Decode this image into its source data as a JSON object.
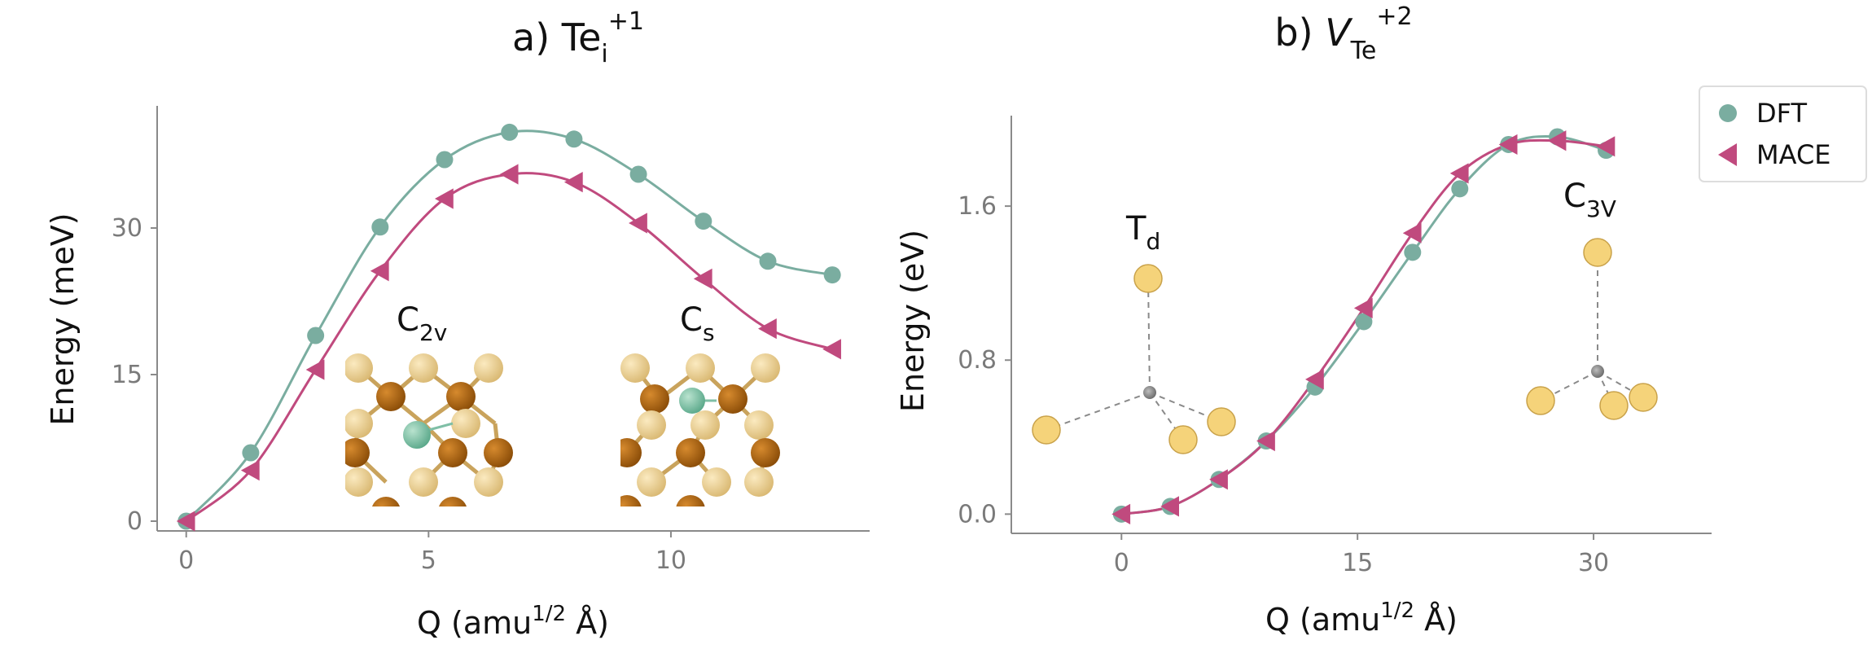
{
  "colors": {
    "dft": "#7aada0",
    "mace": "#c04a7e",
    "axis": "#8a8a8a",
    "te_atom": "#f2d17c",
    "cd_atom": "#b8690f"
  },
  "legend": {
    "entries": [
      {
        "label": "DFT",
        "marker": "circle"
      },
      {
        "label": "MACE",
        "marker": "triangle-left"
      }
    ]
  },
  "chart_data": [
    {
      "type": "line",
      "panel": "a",
      "title": {
        "main": "a) Te",
        "sub": "i",
        "sup": "+1"
      },
      "xlabel": {
        "main": "Q (amu",
        "sup": "1/2",
        "tail": " Å)"
      },
      "ylabel": "Energy (meV)",
      "xlim": [
        -0.6,
        14.1
      ],
      "ylim": [
        -1,
        42.5
      ],
      "xticks": [
        0,
        5,
        10
      ],
      "yticks": [
        0,
        15,
        30
      ],
      "series": [
        {
          "name": "DFT",
          "x": [
            0,
            1.33,
            2.67,
            4.0,
            5.33,
            6.67,
            8.0,
            9.33,
            10.67,
            12.0,
            13.33
          ],
          "y": [
            0,
            7.0,
            19.0,
            30.1,
            37.0,
            39.8,
            39.1,
            35.5,
            30.7,
            26.6,
            25.2
          ]
        },
        {
          "name": "MACE",
          "x": [
            0,
            1.33,
            2.67,
            4.0,
            5.33,
            6.67,
            8.0,
            9.33,
            10.67,
            12.0,
            13.33
          ],
          "y": [
            0,
            5.2,
            15.5,
            25.6,
            33.0,
            35.5,
            34.7,
            30.5,
            24.8,
            19.7,
            17.6
          ]
        }
      ],
      "annotations": [
        {
          "main": "C",
          "sub": "2v"
        },
        {
          "main": "C",
          "sub": "s"
        }
      ]
    },
    {
      "type": "line",
      "panel": "b",
      "title": {
        "main": "b) ",
        "italic": "V",
        "sub": "Te",
        "sup": "+2"
      },
      "xlabel": {
        "main": "Q (amu",
        "sup": "1/2",
        "tail": " Å)"
      },
      "ylabel": "Energy (eV)",
      "xlim": [
        -7,
        37.5
      ],
      "ylim": [
        -0.1,
        2.07
      ],
      "xticks": [
        0,
        15,
        30
      ],
      "yticks": [
        0.0,
        0.8,
        1.6
      ],
      "xtick_labels": [
        "0",
        "15",
        "30"
      ],
      "ytick_labels": [
        "0.0",
        "0.8",
        "1.6"
      ],
      "series": [
        {
          "name": "DFT",
          "x": [
            0,
            3.1,
            6.2,
            9.2,
            12.3,
            15.4,
            18.5,
            21.5,
            24.6,
            27.7,
            30.8
          ],
          "y": [
            0,
            0.04,
            0.18,
            0.38,
            0.66,
            1.0,
            1.36,
            1.69,
            1.92,
            1.96,
            1.89
          ]
        },
        {
          "name": "MACE",
          "x": [
            0,
            3.1,
            6.2,
            9.2,
            12.3,
            15.4,
            18.5,
            21.5,
            24.6,
            27.7,
            30.8
          ],
          "y": [
            0,
            0.04,
            0.18,
            0.38,
            0.7,
            1.07,
            1.46,
            1.77,
            1.92,
            1.94,
            1.91
          ]
        }
      ],
      "annotations": [
        {
          "main": "T",
          "sub": "d"
        },
        {
          "main": "C",
          "sub": "3V"
        }
      ]
    }
  ]
}
